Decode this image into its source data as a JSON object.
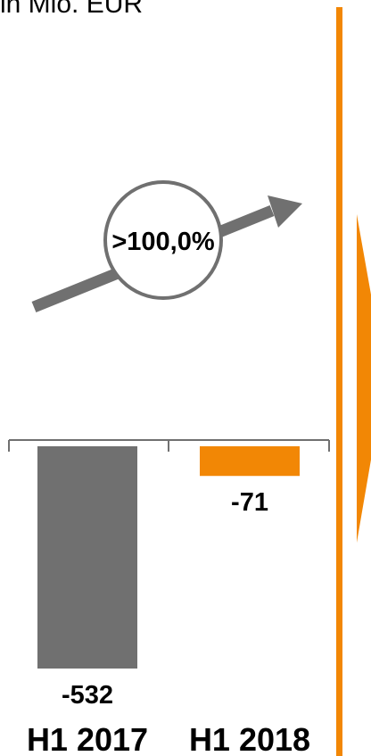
{
  "unit_label": "in Mio. EUR",
  "growth_badge": ">100,0%",
  "colors": {
    "bar_2017": "#707070",
    "bar_2018": "#f28705",
    "axis": "#707070",
    "divider": "#f28705",
    "arrow": "#707070",
    "circle_stroke": "#707070"
  },
  "chart_data": {
    "type": "bar",
    "categories": [
      "H1 2017",
      "H1 2018"
    ],
    "values": [
      -532,
      -71
    ],
    "value_labels": [
      "-532",
      "-71"
    ],
    "title": "",
    "xlabel": "",
    "ylabel": "",
    "ylim": [
      -532,
      0
    ]
  }
}
